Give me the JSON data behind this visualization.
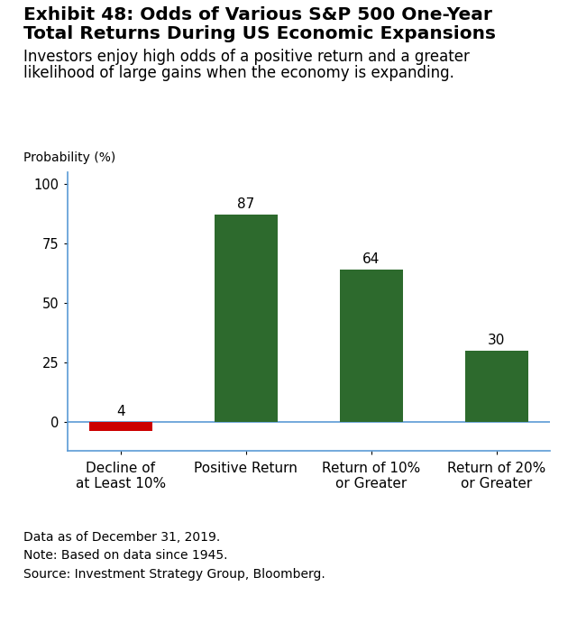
{
  "title_line1": "Exhibit 48: Odds of Various S&P 500 One-Year",
  "title_line2": "Total Returns During US Economic Expansions",
  "subtitle_line1": "Investors enjoy high odds of a positive return and a greater",
  "subtitle_line2": "likelihood of large gains when the economy is expanding.",
  "ylabel_text": "Probability (%)",
  "categories": [
    "Decline of\nat Least 10%",
    "Positive Return",
    "Return of 10%\nor Greater",
    "Return of 20%\nor Greater"
  ],
  "values": [
    -4,
    87,
    64,
    30
  ],
  "bar_labels": [
    "4",
    "87",
    "64",
    "30"
  ],
  "bar_colors": [
    "#cc0000",
    "#2d6a2d",
    "#2d6a2d",
    "#2d6a2d"
  ],
  "ylim": [
    -12,
    105
  ],
  "yticks": [
    0,
    25,
    50,
    75,
    100
  ],
  "footnote1": "Data as of December 31, 2019.",
  "footnote2": "Note: Based on data since 1945.",
  "footnote3": "Source: Investment Strategy Group, Bloomberg.",
  "background_color": "#ffffff",
  "axis_color": "#5b9bd5",
  "text_color": "#000000",
  "title_fontsize": 14.5,
  "subtitle_fontsize": 12,
  "label_fontsize": 11,
  "tick_fontsize": 10.5,
  "footnote_fontsize": 10,
  "ylabel_fontsize": 10
}
